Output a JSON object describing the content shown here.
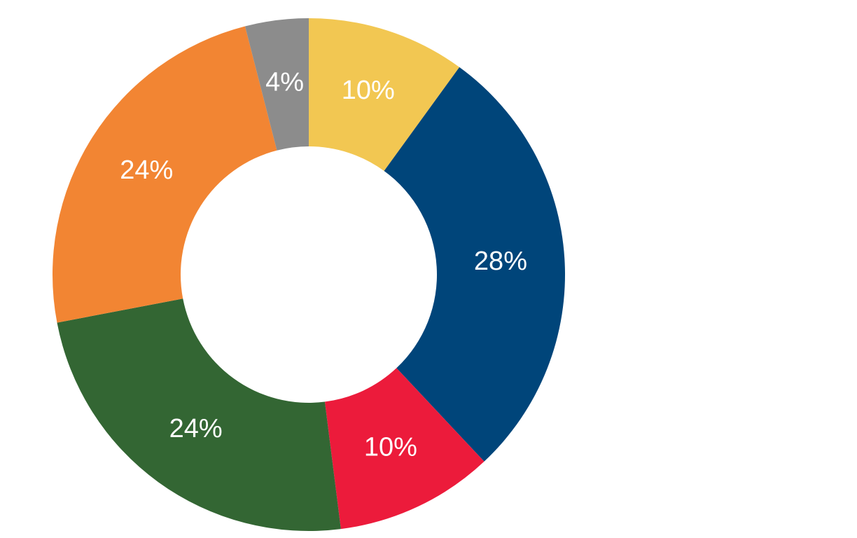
{
  "chart_data": {
    "type": "donut",
    "values": [
      10,
      28,
      10,
      24,
      24,
      4
    ],
    "value_labels": [
      "10%",
      "28%",
      "10%",
      "24%",
      "24%",
      "4%"
    ],
    "colors": [
      "#f2c752",
      "#00457a",
      "#ec1b3b",
      "#336633",
      "#f28533",
      "#8c8c8c"
    ]
  }
}
